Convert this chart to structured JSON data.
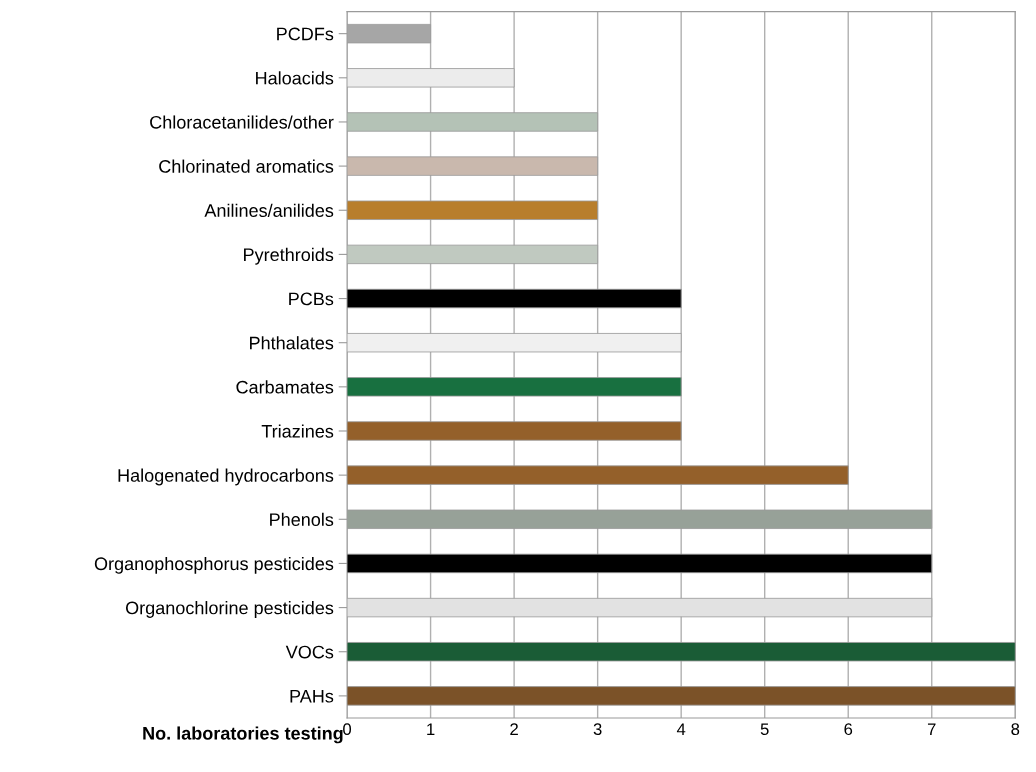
{
  "chart_data": {
    "type": "bar",
    "orientation": "horizontal",
    "xlabel": "No. laboratories testing",
    "categories": [
      "PCDFs",
      "Haloacids",
      "Chloracetanilides/other",
      "Chlorinated aromatics",
      "Anilines/anilides",
      "Pyrethroids",
      "PCBs",
      "Phthalates",
      "Carbamates",
      "Triazines",
      "Halogenated hydrocarbons",
      "Phenols",
      "Organophosphorus pesticides",
      "Organochlorine pesticides",
      "VOCs",
      "PAHs"
    ],
    "values": [
      1,
      2,
      3,
      3,
      3,
      3,
      4,
      4,
      4,
      4,
      6,
      7,
      7,
      7,
      8,
      8
    ],
    "colors": [
      "#a6a6a6",
      "#ececec",
      "#b4c2b6",
      "#c9b8ad",
      "#b87e2c",
      "#c0c9c0",
      "#000000",
      "#f0f0f0",
      "#187040",
      "#94602a",
      "#94602a",
      "#97a198",
      "#000000",
      "#e2e2e2",
      "#1a5c36",
      "#7b5228"
    ],
    "xlim": [
      0,
      8
    ],
    "xticks": [
      0,
      1,
      2,
      3,
      4,
      5,
      6,
      7,
      8
    ],
    "grid": "x",
    "legend": false
  }
}
